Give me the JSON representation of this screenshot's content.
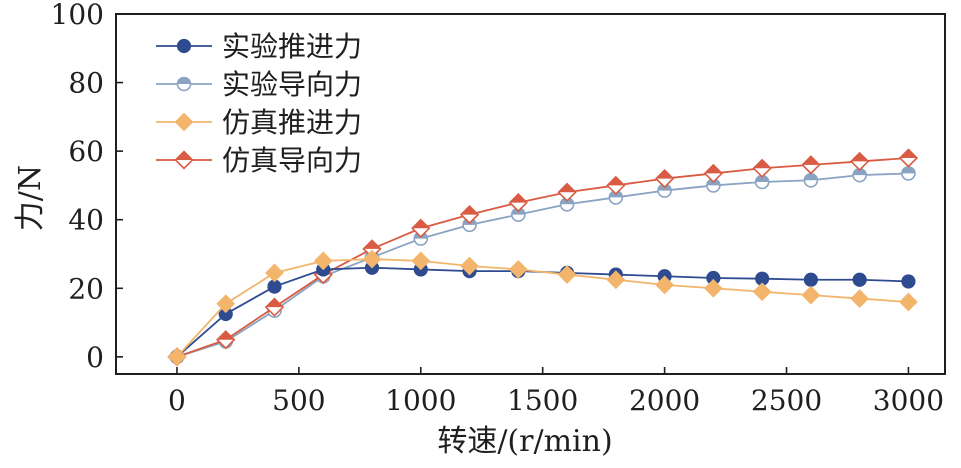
{
  "chart_data": {
    "type": "line",
    "title": "",
    "xlabel": "转速/(r/min)",
    "ylabel": "力/N",
    "xlim": [
      -250,
      3150
    ],
    "ylim": [
      -5,
      100
    ],
    "xticks": [
      0,
      500,
      1000,
      1500,
      2000,
      2500,
      3000
    ],
    "yticks": [
      0,
      20,
      40,
      60,
      80,
      100
    ],
    "xtick_labels": [
      "0",
      "500",
      "1000",
      "1500",
      "2000",
      "2500",
      "3000"
    ],
    "ytick_labels": [
      "0",
      "20",
      "40",
      "60",
      "80",
      "100"
    ],
    "grid": false,
    "legend_position": "top-left",
    "series": [
      {
        "name": "实验推进力",
        "color": "#2f4b8f",
        "marker": "circle-filled",
        "x": [
          0,
          200,
          400,
          600,
          800,
          1000,
          1200,
          1400,
          1600,
          1800,
          2000,
          2200,
          2400,
          2600,
          2800,
          3000
        ],
        "y": [
          0,
          12.5,
          20.5,
          25.5,
          26.0,
          25.5,
          25.0,
          25.0,
          24.5,
          24.0,
          23.5,
          23.0,
          22.8,
          22.5,
          22.5,
          22.0
        ]
      },
      {
        "name": "实验导向力",
        "color": "#8aa3c2",
        "marker": "circle-half",
        "x": [
          0,
          200,
          400,
          600,
          800,
          1000,
          1200,
          1400,
          1600,
          1800,
          2000,
          2200,
          2400,
          2600,
          2800,
          3000
        ],
        "y": [
          0,
          4.5,
          13.5,
          23.5,
          29.0,
          34.5,
          38.5,
          41.5,
          44.5,
          46.5,
          48.5,
          50.0,
          51.0,
          51.5,
          53.0,
          53.5
        ]
      },
      {
        "name": "仿真推进力",
        "color": "#f2b56b",
        "marker": "diamond-filled",
        "x": [
          0,
          200,
          400,
          600,
          800,
          1000,
          1200,
          1400,
          1600,
          1800,
          2000,
          2200,
          2400,
          2600,
          2800,
          3000
        ],
        "y": [
          0,
          15.5,
          24.5,
          28.0,
          28.5,
          28.0,
          26.5,
          25.5,
          24.0,
          22.5,
          21.0,
          20.0,
          19.0,
          18.0,
          17.0,
          16.0
        ]
      },
      {
        "name": "仿真导向力",
        "color": "#d95b43",
        "marker": "diamond-half",
        "x": [
          0,
          200,
          400,
          600,
          800,
          1000,
          1200,
          1400,
          1600,
          1800,
          2000,
          2200,
          2400,
          2600,
          2800,
          3000
        ],
        "y": [
          0,
          5.0,
          14.5,
          24.0,
          31.5,
          37.5,
          41.5,
          45.0,
          48.0,
          50.0,
          52.0,
          53.5,
          55.0,
          56.0,
          57.0,
          58.0
        ]
      }
    ]
  }
}
